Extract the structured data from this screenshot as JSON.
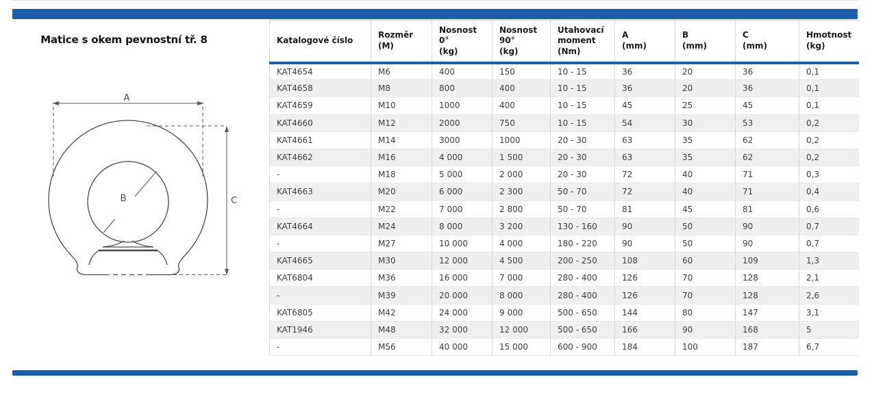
{
  "header": {
    "title": "Matice s okem pevnostní tř. 8"
  },
  "theme": {
    "accent_blue": "#1c5fa8",
    "row_alt_bg": "#efefef",
    "grid_line": "#d6d6d6",
    "body_text": "#3d3d3d"
  },
  "diagram": {
    "name": "eye-nut-front-view",
    "dimension_labels": {
      "a": "A",
      "b": "B",
      "c": "C"
    }
  },
  "table": {
    "columns": [
      "Katalogové číslo",
      "Rozměr\n(M)",
      "Nosnost\n0°\n(kg)",
      "Nosnost\n90°\n(kg)",
      "Utahovací\nmoment\n(Nm)",
      "A\n(mm)",
      "B\n(mm)",
      "C\n(mm)",
      "Hmotnost\n(kg)"
    ],
    "rows": [
      [
        "KAT4654",
        "M6",
        "400",
        "150",
        "10 - 15",
        "36",
        "20",
        "36",
        "0,1"
      ],
      [
        "KAT4658",
        "M8",
        "800",
        "400",
        "10 - 15",
        "36",
        "20",
        "36",
        "0,1"
      ],
      [
        "KAT4659",
        "M10",
        "1000",
        "400",
        "10 - 15",
        "45",
        "25",
        "45",
        "0,1"
      ],
      [
        "KAT4660",
        "M12",
        "2000",
        "750",
        "10 - 15",
        "54",
        "30",
        "53",
        "0,2"
      ],
      [
        "KAT4661",
        "M14",
        "3000",
        "1000",
        "20 - 30",
        "63",
        "35",
        "62",
        "0,2"
      ],
      [
        "KAT4662",
        "M16",
        "4 000",
        "1 500",
        "20 - 30",
        "63",
        "35",
        "62",
        "0,2"
      ],
      [
        "-",
        "M18",
        "5 000",
        "2 000",
        "20 - 30",
        "72",
        "40",
        "71",
        "0,3"
      ],
      [
        "KAT4663",
        "M20",
        "6 000",
        "2 300",
        "50 - 70",
        "72",
        "40",
        "71",
        "0,4"
      ],
      [
        "-",
        "M22",
        "7 000",
        "2 800",
        "50 - 70",
        "81",
        "45",
        "81",
        "0,6"
      ],
      [
        "KAT4664",
        "M24",
        "8 000",
        "3 200",
        "130 - 160",
        "90",
        "50",
        "90",
        "0,7"
      ],
      [
        "-",
        "M27",
        "10 000",
        "4 000",
        "180 - 220",
        "90",
        "50",
        "90",
        "0,7"
      ],
      [
        "KAT4665",
        "M30",
        "12 000",
        "4 500",
        "200 - 250",
        "108",
        "60",
        "109",
        "1,3"
      ],
      [
        "KAT6804",
        "M36",
        "16 000",
        "7 000",
        "280 - 400",
        "126",
        "70",
        "128",
        "2,1"
      ],
      [
        "-",
        "M39",
        "20 000",
        "8 000",
        "280 - 400",
        "126",
        "70",
        "128",
        "2,6"
      ],
      [
        "KAT6805",
        "M42",
        "24 000",
        "9 000",
        "500 - 650",
        "144",
        "80",
        "147",
        "3,1"
      ],
      [
        "KAT1946",
        "M48",
        "32 000",
        "12 000",
        "500 - 650",
        "166",
        "90",
        "168",
        "5"
      ],
      [
        "-",
        "M56",
        "40 000",
        "15 000",
        "600 - 900",
        "184",
        "100",
        "187",
        "6,7"
      ]
    ]
  }
}
